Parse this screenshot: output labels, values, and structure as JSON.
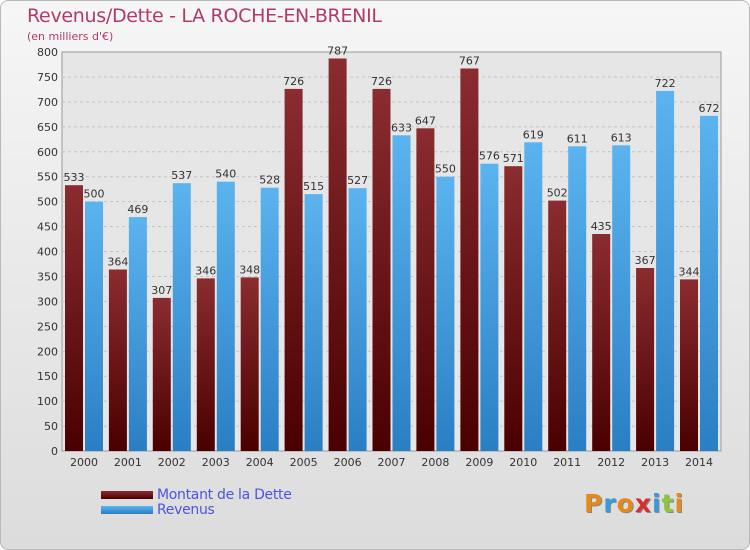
{
  "header": {
    "title": "Revenus/Dette - LA ROCHE-EN-BRENIL",
    "subtitle": "(en milliers d'€)"
  },
  "legend": {
    "items": [
      {
        "label": "Montant de la Dette",
        "color": "#7a1f22"
      },
      {
        "label": "Revenus",
        "color": "#4aa3e6"
      }
    ]
  },
  "logo": {
    "text": "Proxiti",
    "colors": [
      "#e58a1a",
      "#3a9ad9",
      "#e58a1a",
      "#d62f2f",
      "#3a9ad9",
      "#8cc63f",
      "#e58a1a"
    ]
  },
  "chart_data": {
    "type": "bar",
    "title": "Revenus/Dette - LA ROCHE-EN-BRENIL",
    "ylabel": "(en milliers d'€)",
    "ylim": [
      0,
      800
    ],
    "yticks": [
      0,
      50,
      100,
      150,
      200,
      250,
      300,
      350,
      400,
      450,
      500,
      550,
      600,
      650,
      700,
      750,
      800
    ],
    "grid": true,
    "legend_position": "bottom-left",
    "categories": [
      "2000",
      "2001",
      "2002",
      "2003",
      "2004",
      "2005",
      "2006",
      "2007",
      "2008",
      "2009",
      "2010",
      "2011",
      "2012",
      "2013",
      "2014"
    ],
    "series": [
      {
        "name": "Montant de la Dette",
        "values": [
          533,
          364,
          307,
          346,
          348,
          726,
          787,
          726,
          647,
          767,
          571,
          502,
          435,
          367,
          344
        ]
      },
      {
        "name": "Revenus",
        "values": [
          500,
          469,
          537,
          540,
          528,
          515,
          527,
          633,
          550,
          576,
          619,
          611,
          613,
          722,
          672
        ]
      }
    ]
  }
}
